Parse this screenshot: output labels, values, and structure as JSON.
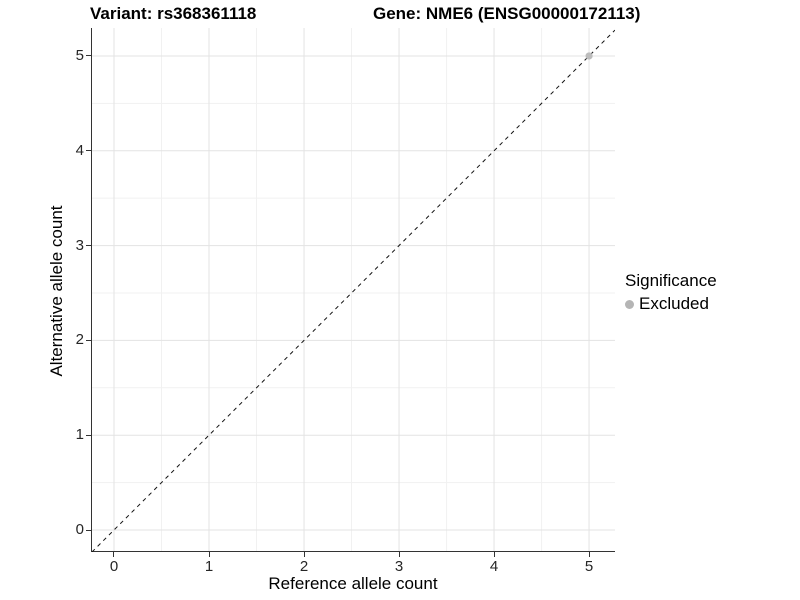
{
  "header": {
    "variant_title": "Variant: rs368361118",
    "gene_title": "Gene: NME6 (ENSG00000172113)"
  },
  "chart_data": {
    "type": "scatter",
    "title": "Variant: rs368361118   Gene: NME6 (ENSG00000172113)",
    "xlabel": "Reference allele count",
    "ylabel": "Alternative allele count",
    "xlim": [
      -0.242,
      5.273
    ],
    "ylim": [
      -0.232,
      5.295
    ],
    "x_breaks": [
      0,
      1,
      2,
      3,
      4,
      5
    ],
    "y_breaks": [
      0,
      1,
      2,
      3,
      4,
      5
    ],
    "x_tick_labels": [
      "0",
      "1",
      "2",
      "3",
      "4",
      "5"
    ],
    "y_tick_labels": [
      "0",
      "1",
      "2",
      "3",
      "4",
      "5"
    ],
    "x_minor_breaks": [
      0.5,
      1.5,
      2.5,
      3.5,
      4.5
    ],
    "y_minor_breaks": [
      0.5,
      1.5,
      2.5,
      3.5,
      4.5
    ],
    "grid": "major+minor",
    "series": [
      {
        "name": "Excluded",
        "color": "#bdbdbd",
        "points": [
          [
            5,
            5
          ]
        ]
      }
    ],
    "reference_line": {
      "slope": 1,
      "intercept": 0,
      "style": "dashed",
      "color": "#141414"
    },
    "legend": {
      "title": "Significance",
      "position": "right",
      "items": [
        {
          "label": "Excluded",
          "color": "#b5b5b5"
        }
      ]
    },
    "colors": {
      "grid_major": "#e3e3e3",
      "grid_minor": "#f1f1f1",
      "axis": "#333333",
      "tick_text": "#262626",
      "background": "#ffffff"
    }
  }
}
